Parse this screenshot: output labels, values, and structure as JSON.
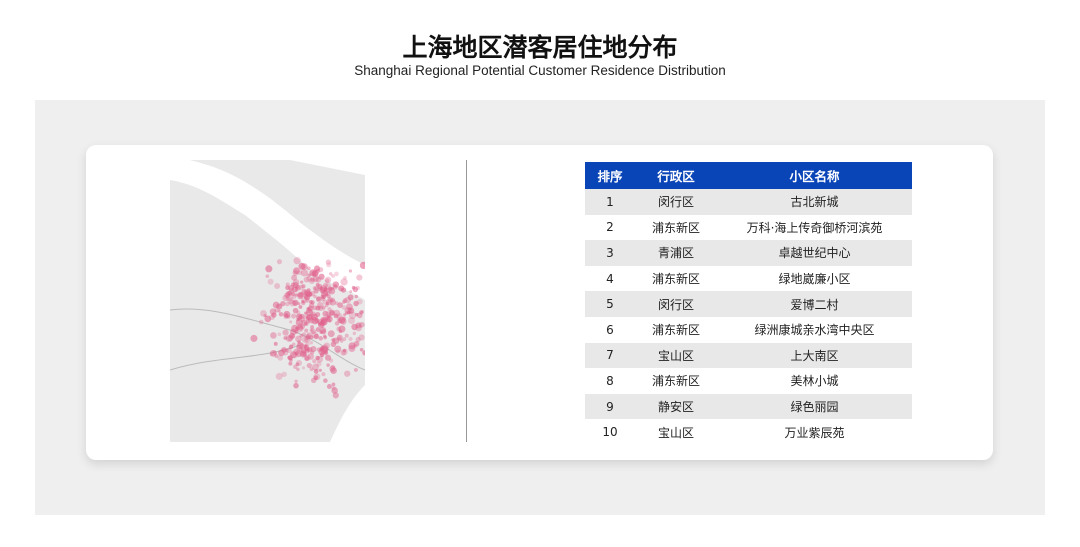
{
  "title": "上海地区潜客居住地分布",
  "subtitle": "Shanghai Regional Potential Customer Residence Distribution",
  "colors": {
    "header": "#0a45b8",
    "dots": "#e0608c",
    "map_land": "#e9e9e9"
  },
  "table": {
    "headers": [
      "排序",
      "行政区",
      "小区名称"
    ],
    "rows": [
      [
        "1",
        "闵行区",
        "古北新城"
      ],
      [
        "2",
        "浦东新区",
        "万科·海上传奇御桥河滨苑"
      ],
      [
        "3",
        "青浦区",
        "卓越世纪中心"
      ],
      [
        "4",
        "浦东新区",
        "绿地崴廉小区"
      ],
      [
        "5",
        "闵行区",
        "爱博二村"
      ],
      [
        "6",
        "浦东新区",
        "绿洲康城亲水湾中央区"
      ],
      [
        "7",
        "宝山区",
        "上大南区"
      ],
      [
        "8",
        "浦东新区",
        "美林小城"
      ],
      [
        "9",
        "静安区",
        "绿色丽园"
      ],
      [
        "10",
        "宝山区",
        "万业紫辰苑"
      ]
    ]
  }
}
